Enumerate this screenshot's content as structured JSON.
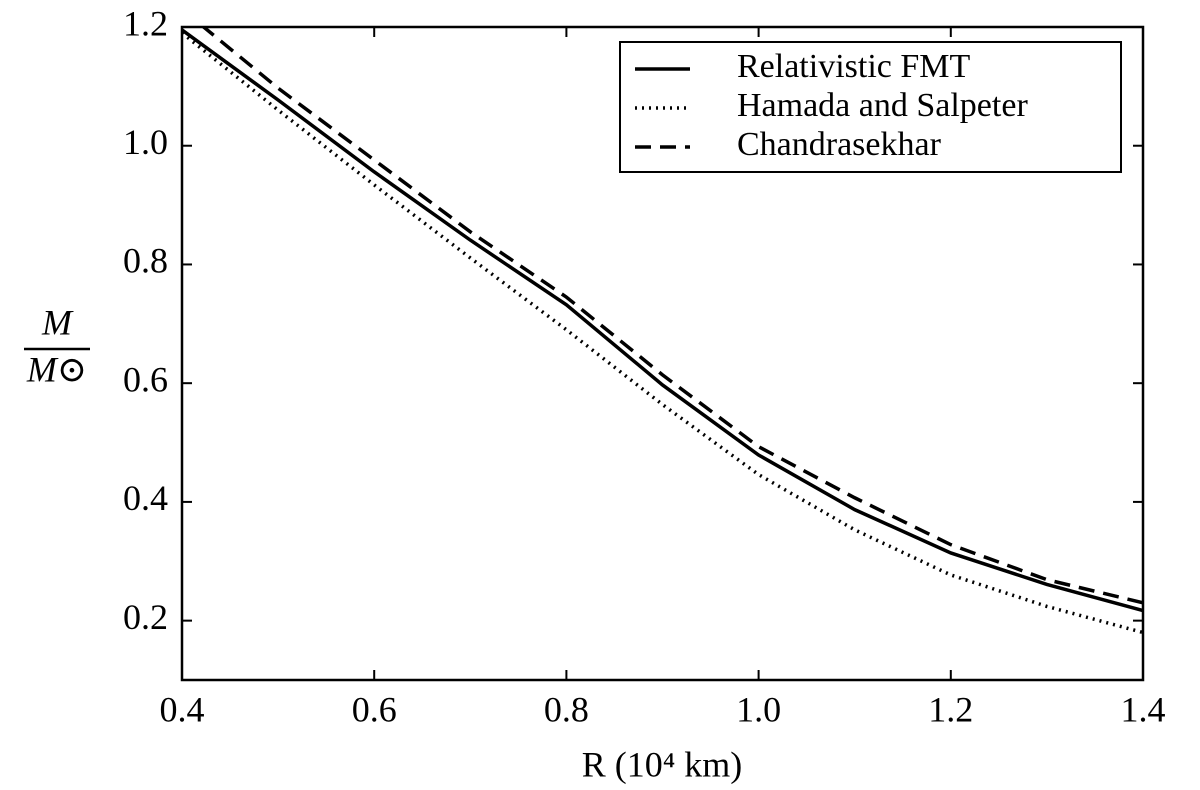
{
  "chart_data": {
    "type": "line",
    "x_label": "R (10⁴ km)",
    "y_label": {
      "numerator": "M",
      "denominator": "M⊙"
    },
    "x": [
      0.4,
      0.5,
      0.6,
      0.7,
      0.8,
      0.9,
      1.0,
      1.1,
      1.2,
      1.3,
      1.4
    ],
    "series": [
      {
        "name": "Relativistic FMT",
        "color": "#000000",
        "style": "solid",
        "values": [
          1.195,
          1.077,
          0.956,
          0.841,
          0.732,
          0.597,
          0.479,
          0.387,
          0.314,
          0.261,
          0.217
        ]
      },
      {
        "name": "Hamada and Salpeter",
        "color": "#000000",
        "style": "dotted",
        "values": [
          1.19,
          1.06,
          0.934,
          0.811,
          0.69,
          0.564,
          0.446,
          0.353,
          0.277,
          0.224,
          0.18
        ]
      },
      {
        "name": "Chandrasekhar",
        "color": "#000000",
        "style": "dashed",
        "values": [
          1.23,
          1.097,
          0.976,
          0.855,
          0.745,
          0.614,
          0.493,
          0.407,
          0.328,
          0.269,
          0.23
        ]
      }
    ],
    "xlim": [
      0.4,
      1.4
    ],
    "ylim": [
      0.1,
      1.2
    ],
    "xticks": [
      0.4,
      0.6,
      0.8,
      {
        "value": 1,
        "label": "1.0"
      },
      1.2,
      1.4
    ],
    "yticks": [
      0.2,
      0.4,
      0.6,
      0.8,
      {
        "value": 1,
        "label": "1.0"
      },
      1.2
    ],
    "legend": "upper right"
  }
}
